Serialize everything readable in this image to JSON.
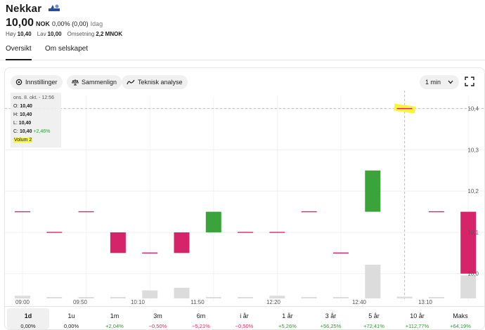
{
  "header": {
    "title": "Nekkar",
    "price": "10,00",
    "currency": "NOK",
    "change": "0,00% (0,00)",
    "when": "Idag",
    "high_label": "Høy",
    "high_value": "10,40",
    "low_label": "Lav",
    "low_value": "10,00",
    "turnover_label": "Omsetning",
    "turnover_value": "2,2 MNOK"
  },
  "tabs": [
    {
      "label": "Oversikt",
      "active": true
    },
    {
      "label": "Om selskapet",
      "active": false
    }
  ],
  "toolbar": {
    "settings_label": "Innstillinger",
    "compare_label": "Sammenlign",
    "technical_label": "Teknisk analyse",
    "interval_label": "1 min",
    "settings_icon": "gear-icon",
    "compare_icon": "scale-icon",
    "technical_icon": "trend-line-icon",
    "interval_icon": "chevron-down-icon",
    "expand_icon": "expand-icon"
  },
  "ohlc_box": {
    "datetime": "ons. 8. okt. - 12:56",
    "open_label": "O:",
    "open": "10,40",
    "high_label": "H:",
    "high": "10,40",
    "low_label": "L:",
    "low": "10,40",
    "close_label": "C:",
    "close": "10,40",
    "close_change": "+2,46%",
    "volume_label": "Volum 2"
  },
  "colors": {
    "up": "#3aa33a",
    "down": "#d6246a",
    "volume": "#dcdcdc",
    "highlight": "#f6f63a"
  },
  "chart_data": {
    "type": "candlestick",
    "x_tick_labels": [
      "09:00",
      "09:50",
      "10:10",
      "11:50",
      "12:20",
      "12:40",
      "13:10"
    ],
    "y_tick_labels": [
      "10,4",
      "10,3",
      "10,2",
      "10,1",
      "10,0"
    ],
    "ylim": [
      9.94,
      10.43
    ],
    "crosshair_y": 10.4,
    "candles": [
      {
        "open": 10.15,
        "close": 10.15,
        "volume": 3
      },
      {
        "open": 10.1,
        "close": 10.1,
        "volume": 1
      },
      {
        "open": 10.15,
        "close": 10.15,
        "volume": 1
      },
      {
        "open": 10.1,
        "close": 10.05,
        "volume": 1
      },
      {
        "open": 10.05,
        "close": 10.05,
        "volume": 9
      },
      {
        "open": 10.1,
        "close": 10.05,
        "volume": 12
      },
      {
        "open": 10.1,
        "close": 10.15,
        "volume": 1
      },
      {
        "open": 10.1,
        "close": 10.1,
        "volume": 1
      },
      {
        "open": 10.1,
        "close": 10.1,
        "volume": 3
      },
      {
        "open": 10.15,
        "close": 10.15,
        "volume": 1
      },
      {
        "open": 10.05,
        "close": 10.05,
        "volume": 1
      },
      {
        "open": 10.15,
        "close": 10.25,
        "volume": 38
      },
      {
        "open": 10.4,
        "close": 10.4,
        "volume": 2
      },
      {
        "open": 10.15,
        "close": 10.15,
        "volume": 1
      },
      {
        "open": 10.15,
        "close": 10.0,
        "volume": 26
      }
    ]
  },
  "periods": [
    {
      "label": "1d",
      "change": "0,00%",
      "sign": "zero",
      "active": true
    },
    {
      "label": "1u",
      "change": "0,00%",
      "sign": "zero",
      "active": false
    },
    {
      "label": "1m",
      "change": "+2,04%",
      "sign": "pos",
      "active": false
    },
    {
      "label": "3m",
      "change": "−0,50%",
      "sign": "neg",
      "active": false
    },
    {
      "label": "6m",
      "change": "−5,21%",
      "sign": "neg",
      "active": false
    },
    {
      "label": "i år",
      "change": "−0,50%",
      "sign": "neg",
      "active": false
    },
    {
      "label": "1 år",
      "change": "+5,26%",
      "sign": "pos",
      "active": false
    },
    {
      "label": "3 år",
      "change": "+56,25%",
      "sign": "pos",
      "active": false
    },
    {
      "label": "5 år",
      "change": "+72,41%",
      "sign": "pos",
      "active": false
    },
    {
      "label": "10 år",
      "change": "+112,77%",
      "sign": "pos",
      "active": false
    },
    {
      "label": "Maks",
      "change": "+64,19%",
      "sign": "pos",
      "active": false
    }
  ]
}
